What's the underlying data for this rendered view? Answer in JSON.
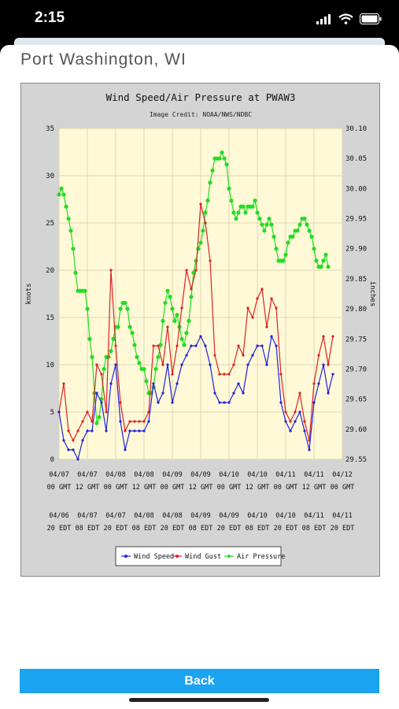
{
  "status_bar": {
    "time": "2:15"
  },
  "header": {
    "title": "Port Washington, WI"
  },
  "chart_data": {
    "type": "line",
    "title": "Wind Speed/Air Pressure at PWAW3",
    "subtitle": "Image Credit: NOAA/NWS/NDBC",
    "ylabel_left": "knots",
    "ylabel_right": "inches",
    "y_left_ticks": [
      "0",
      "5",
      "10",
      "15",
      "20",
      "25",
      "30",
      "35"
    ],
    "y_right_ticks": [
      "29.55",
      "29.60",
      "29.65",
      "29.70",
      "29.75",
      "29.80",
      "29.85",
      "29.90",
      "29.95",
      "30.00",
      "30.05",
      "30.10"
    ],
    "ylim_left": [
      0,
      35
    ],
    "ylim_right": [
      29.55,
      30.1
    ],
    "x_gmt_ticks": [
      [
        "04/07",
        "00 GMT"
      ],
      [
        "04/07",
        "12 GMT"
      ],
      [
        "04/08",
        "00 GMT"
      ],
      [
        "04/08",
        "12 GMT"
      ],
      [
        "04/09",
        "00 GMT"
      ],
      [
        "04/09",
        "12 GMT"
      ],
      [
        "04/10",
        "00 GMT"
      ],
      [
        "04/10",
        "12 GMT"
      ],
      [
        "04/11",
        "00 GMT"
      ],
      [
        "04/11",
        "12 GMT"
      ],
      [
        "04/12",
        "00 GMT"
      ]
    ],
    "x_edt_ticks": [
      [
        "04/06",
        "20 EDT"
      ],
      [
        "04/07",
        "08 EDT"
      ],
      [
        "04/07",
        "20 EDT"
      ],
      [
        "04/08",
        "08 EDT"
      ],
      [
        "04/08",
        "20 EDT"
      ],
      [
        "04/09",
        "08 EDT"
      ],
      [
        "04/09",
        "20 EDT"
      ],
      [
        "04/10",
        "08 EDT"
      ],
      [
        "04/10",
        "20 EDT"
      ],
      [
        "04/11",
        "08 EDT"
      ],
      [
        "04/11",
        "20 EDT"
      ]
    ],
    "x_range_hours": [
      0,
      120
    ],
    "grid": true,
    "legend_position": "bottom",
    "series": [
      {
        "name": "Wind Speed",
        "color": "#2222dd",
        "axis": "left",
        "x": [
          0,
          2,
          4,
          6,
          8,
          10,
          12,
          14,
          16,
          18,
          20,
          22,
          24,
          26,
          28,
          30,
          32,
          34,
          36,
          38,
          40,
          42,
          44,
          46,
          48,
          50,
          52,
          54,
          56,
          58,
          60,
          62,
          64,
          66,
          68,
          70,
          72,
          74,
          76,
          78,
          80,
          82,
          84,
          86,
          88,
          90,
          92,
          94,
          96,
          98,
          100,
          102,
          104,
          106,
          108,
          110,
          112,
          114,
          116
        ],
        "values": [
          5,
          2,
          1,
          1,
          0,
          2,
          3,
          3,
          7,
          6,
          3,
          8,
          10,
          4,
          1,
          3,
          3,
          3,
          3,
          4,
          8,
          6,
          7,
          10,
          6,
          8,
          10,
          11,
          12,
          12,
          13,
          12,
          10,
          7,
          6,
          6,
          6,
          7,
          8,
          7,
          10,
          11,
          12,
          12,
          10,
          13,
          12,
          6,
          4,
          3,
          4,
          5,
          3,
          1,
          6,
          8,
          10,
          7,
          9
        ]
      },
      {
        "name": "Wind Gust",
        "color": "#dd2222",
        "axis": "left",
        "x": [
          0,
          2,
          4,
          6,
          8,
          10,
          12,
          14,
          16,
          18,
          20,
          22,
          24,
          26,
          28,
          30,
          32,
          34,
          36,
          38,
          40,
          42,
          44,
          46,
          48,
          50,
          52,
          54,
          56,
          58,
          60,
          62,
          64,
          66,
          68,
          70,
          72,
          74,
          76,
          78,
          80,
          82,
          84,
          86,
          88,
          90,
          92,
          94,
          96,
          98,
          100,
          102,
          104,
          106,
          108,
          110,
          112,
          114,
          116
        ],
        "values": [
          5,
          8,
          3,
          2,
          3,
          4,
          5,
          4,
          10,
          9,
          5,
          20,
          12,
          6,
          3,
          4,
          4,
          4,
          4,
          5,
          12,
          12,
          10,
          14,
          9,
          12,
          16,
          20,
          18,
          20,
          27,
          25,
          21,
          11,
          9,
          9,
          9,
          10,
          12,
          11,
          16,
          15,
          17,
          18,
          14,
          17,
          16,
          9,
          5,
          4,
          5,
          7,
          4,
          2,
          8,
          11,
          13,
          10,
          13
        ]
      },
      {
        "name": "Air Pressure",
        "color": "#22dd22",
        "axis": "right",
        "x": [
          0,
          1,
          2,
          3,
          4,
          5,
          6,
          7,
          8,
          9,
          10,
          11,
          12,
          13,
          14,
          15,
          16,
          17,
          18,
          19,
          20,
          21,
          22,
          23,
          24,
          25,
          26,
          27,
          28,
          29,
          30,
          31,
          32,
          33,
          34,
          35,
          36,
          37,
          38,
          39,
          40,
          41,
          42,
          43,
          44,
          45,
          46,
          47,
          48,
          49,
          50,
          51,
          52,
          53,
          54,
          55,
          56,
          57,
          58,
          59,
          60,
          61,
          62,
          63,
          64,
          65,
          66,
          67,
          68,
          69,
          70,
          71,
          72,
          73,
          74,
          75,
          76,
          77,
          78,
          79,
          80,
          81,
          82,
          83,
          84,
          85,
          86,
          87,
          88,
          89,
          90,
          91,
          92,
          93,
          94,
          95,
          96,
          97,
          98,
          99,
          100,
          101,
          102,
          103,
          104,
          105,
          106,
          107,
          108,
          109,
          110,
          111,
          112,
          113,
          114
        ],
        "values": [
          29.99,
          30.0,
          29.99,
          29.97,
          29.95,
          29.93,
          29.9,
          29.86,
          29.83,
          29.83,
          29.83,
          29.83,
          29.8,
          29.75,
          29.72,
          29.66,
          29.61,
          29.62,
          29.65,
          29.7,
          29.72,
          29.72,
          29.73,
          29.75,
          29.77,
          29.77,
          29.8,
          29.81,
          29.81,
          29.8,
          29.77,
          29.76,
          29.74,
          29.72,
          29.71,
          29.7,
          29.7,
          29.68,
          29.66,
          29.66,
          29.67,
          29.7,
          29.72,
          29.74,
          29.78,
          29.81,
          29.83,
          29.82,
          29.8,
          29.78,
          29.79,
          29.77,
          29.75,
          29.74,
          29.76,
          29.78,
          29.82,
          29.86,
          29.88,
          29.9,
          29.91,
          29.93,
          29.96,
          29.98,
          30.01,
          30.03,
          30.05,
          30.05,
          30.05,
          30.06,
          30.05,
          30.04,
          30.0,
          29.98,
          29.96,
          29.95,
          29.96,
          29.97,
          29.97,
          29.96,
          29.97,
          29.97,
          29.97,
          29.98,
          29.96,
          29.95,
          29.94,
          29.93,
          29.94,
          29.95,
          29.94,
          29.92,
          29.9,
          29.88,
          29.88,
          29.88,
          29.89,
          29.91,
          29.92,
          29.92,
          29.93,
          29.93,
          29.94,
          29.95,
          29.95,
          29.94,
          29.93,
          29.92,
          29.9,
          29.88,
          29.87,
          29.87,
          29.88,
          29.89,
          29.87
        ]
      }
    ]
  },
  "footer": {
    "back_label": "Back"
  }
}
